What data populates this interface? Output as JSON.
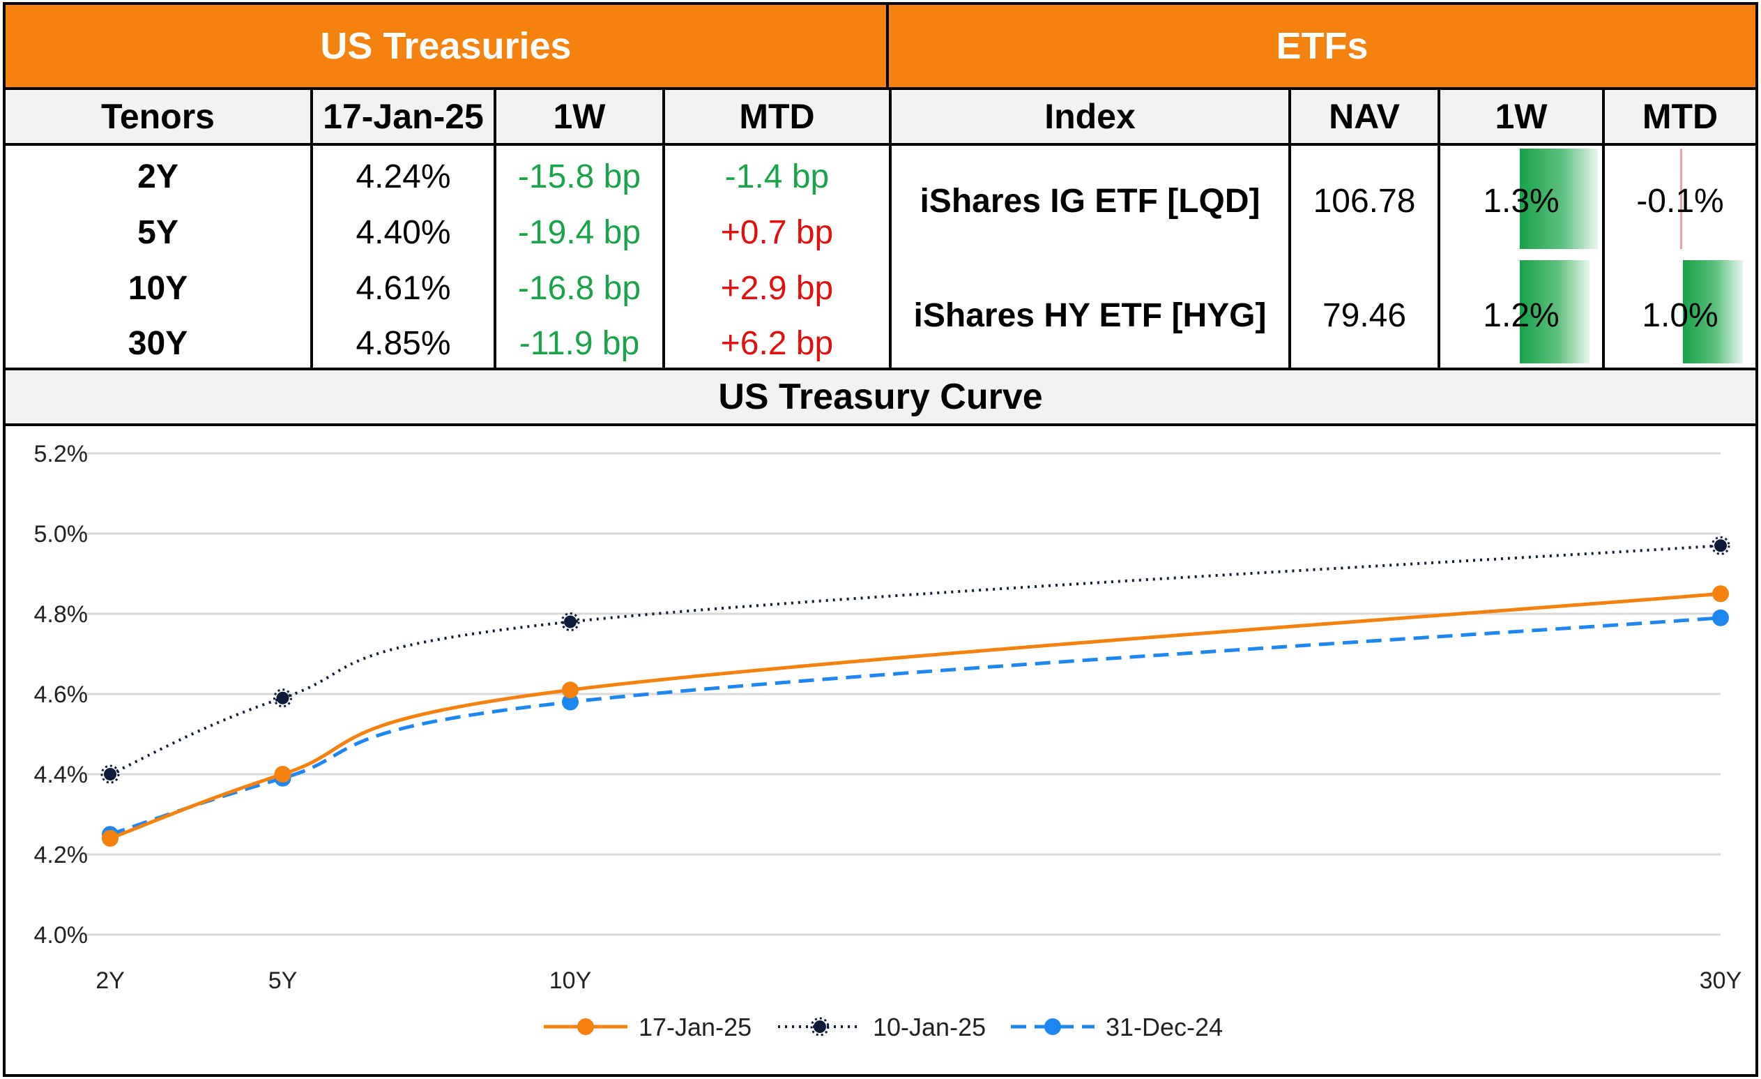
{
  "treasuries": {
    "title": "US Treasuries",
    "headers": [
      "Tenors",
      "17-Jan-25",
      "1W",
      "MTD"
    ],
    "rows": [
      {
        "tenor": "2Y",
        "yield": "4.24%",
        "w1": "-15.8 bp",
        "mtd": "-1.4 bp",
        "w1_color": "green",
        "mtd_color": "green"
      },
      {
        "tenor": "5Y",
        "yield": "4.40%",
        "w1": "-19.4 bp",
        "mtd": "+0.7 bp",
        "w1_color": "green",
        "mtd_color": "red"
      },
      {
        "tenor": "10Y",
        "yield": "4.61%",
        "w1": "-16.8 bp",
        "mtd": "+2.9 bp",
        "w1_color": "green",
        "mtd_color": "red"
      },
      {
        "tenor": "30Y",
        "yield": "4.85%",
        "w1": "-11.9 bp",
        "mtd": "+6.2 bp",
        "w1_color": "green",
        "mtd_color": "red"
      }
    ]
  },
  "etfs": {
    "title": "ETFs",
    "headers": [
      "Index",
      "NAV",
      "1W",
      "MTD"
    ],
    "rows": [
      {
        "index": "iShares IG ETF [LQD]",
        "nav": "106.78",
        "w1": "1.3%",
        "mtd": "-0.1%",
        "w1_value": 1.3,
        "mtd_value": -0.1
      },
      {
        "index": "iShares HY ETF [HYG]",
        "nav": "79.46",
        "w1": "1.2%",
        "mtd": "1.0%",
        "w1_value": 1.2,
        "mtd_value": 1.0
      }
    ]
  },
  "colors": {
    "orange": "#f5820f",
    "green": "#1aa34a",
    "red": "#e01010",
    "navy": "#0d1a3a",
    "blue": "#1e86f0"
  },
  "chart_data": {
    "type": "line",
    "title": "US Treasury Curve",
    "x": [
      2,
      5,
      10,
      30
    ],
    "x_tick_labels": [
      "2Y",
      "5Y",
      "10Y",
      "30Y"
    ],
    "ylim": [
      4.0,
      5.2
    ],
    "y_ticks": [
      4.0,
      4.2,
      4.4,
      4.6,
      4.8,
      5.0,
      5.2
    ],
    "y_tick_labels": [
      "4.0%",
      "4.2%",
      "4.4%",
      "4.6%",
      "4.8%",
      "5.0%",
      "5.2%"
    ],
    "grid": true,
    "legend_position": "bottom",
    "series": [
      {
        "name": "17-Jan-25",
        "values": [
          4.24,
          4.4,
          4.61,
          4.85
        ],
        "style": "solid",
        "color": "#f5820f"
      },
      {
        "name": "10-Jan-25",
        "values": [
          4.4,
          4.59,
          4.78,
          4.97
        ],
        "style": "dotted",
        "color": "#0d1a3a"
      },
      {
        "name": "31-Dec-24",
        "values": [
          4.25,
          4.39,
          4.58,
          4.79
        ],
        "style": "dashed",
        "color": "#1e86f0"
      }
    ]
  }
}
